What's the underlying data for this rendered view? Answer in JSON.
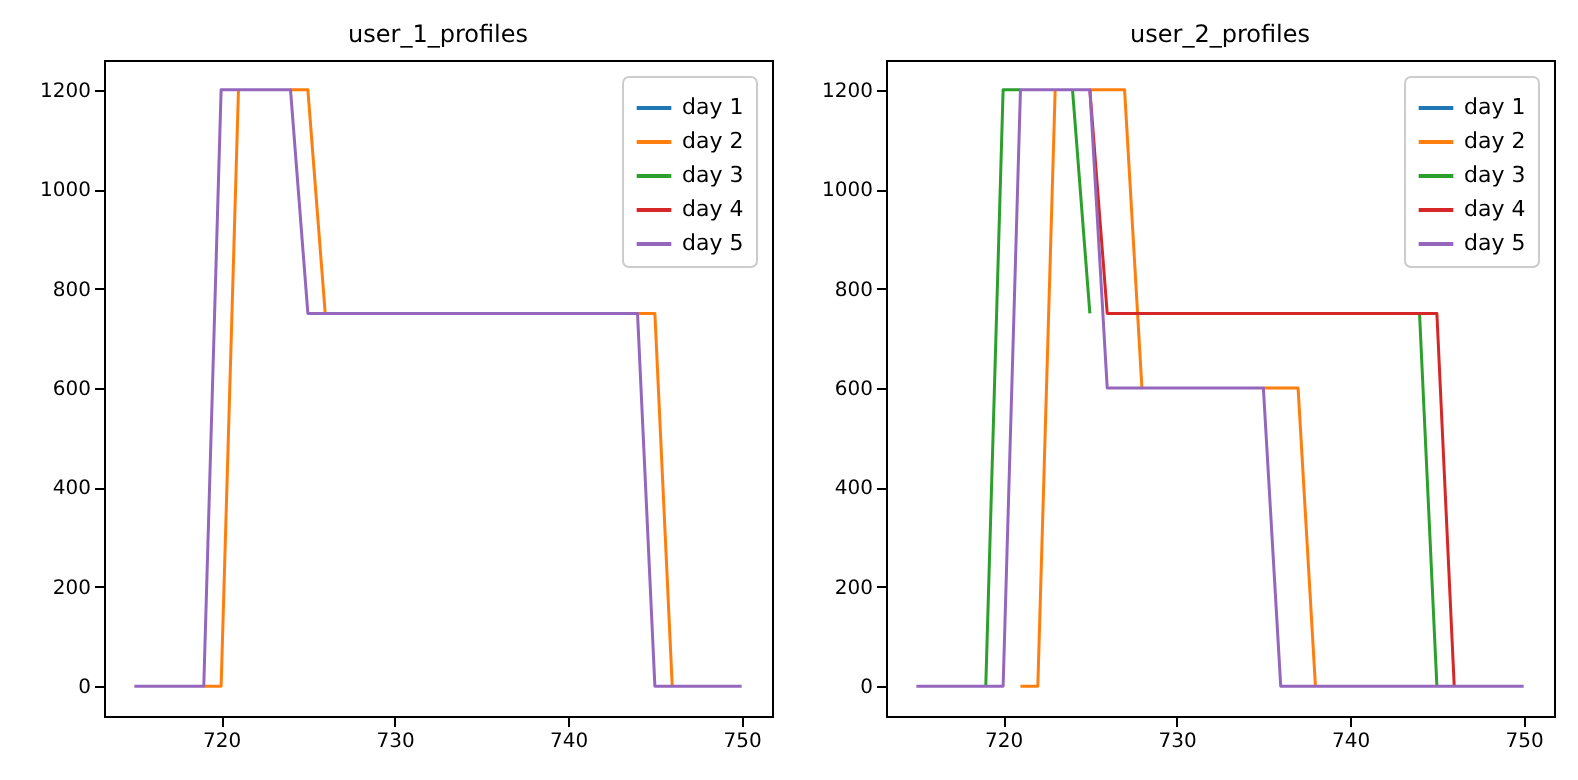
{
  "chart_data": [
    {
      "type": "line",
      "title": "user_1_profiles",
      "x": [
        715,
        716,
        717,
        718,
        719,
        720,
        721,
        722,
        723,
        724,
        725,
        726,
        727,
        728,
        729,
        730,
        731,
        732,
        733,
        734,
        735,
        736,
        737,
        738,
        739,
        740,
        741,
        742,
        743,
        744,
        745,
        746,
        747,
        748,
        749,
        750
      ],
      "xlim": [
        713.25,
        751.75
      ],
      "xticks": [
        720,
        730,
        740,
        750
      ],
      "ylim": [
        -60,
        1260
      ],
      "yticks": [
        0,
        200,
        400,
        600,
        800,
        1000,
        1200
      ],
      "legend": "top right",
      "series": [
        {
          "name": "day 1",
          "color": "#1f77b4",
          "values": [
            null,
            null,
            null,
            null,
            null,
            null,
            null,
            null,
            null,
            null,
            null,
            null,
            null,
            null,
            null,
            null,
            null,
            null,
            null,
            null,
            null,
            null,
            null,
            null,
            null,
            null,
            null,
            null,
            null,
            null,
            null,
            null,
            null,
            null,
            null,
            null
          ]
        },
        {
          "name": "day 2",
          "color": "#ff7f0e",
          "values": [
            null,
            null,
            null,
            null,
            0,
            0,
            1200,
            null,
            null,
            1200,
            1200,
            750,
            null,
            null,
            null,
            null,
            null,
            null,
            null,
            null,
            null,
            null,
            null,
            null,
            null,
            null,
            null,
            null,
            null,
            750,
            750,
            0,
            null,
            null,
            null,
            null
          ]
        },
        {
          "name": "day 3",
          "color": "#2ca02c",
          "values": [
            null,
            null,
            null,
            null,
            null,
            null,
            null,
            null,
            null,
            null,
            null,
            null,
            null,
            null,
            null,
            null,
            null,
            null,
            null,
            null,
            null,
            null,
            null,
            null,
            null,
            null,
            null,
            null,
            null,
            null,
            null,
            null,
            null,
            null,
            null,
            null
          ]
        },
        {
          "name": "day 4",
          "color": "#d62728",
          "values": [
            null,
            null,
            null,
            null,
            null,
            null,
            null,
            null,
            null,
            null,
            null,
            null,
            null,
            null,
            null,
            null,
            null,
            null,
            null,
            null,
            null,
            null,
            null,
            null,
            null,
            null,
            null,
            null,
            null,
            null,
            null,
            null,
            null,
            null,
            null,
            null
          ]
        },
        {
          "name": "day 5",
          "color": "#9467bd",
          "values": [
            0,
            0,
            0,
            0,
            0,
            1200,
            1200,
            1200,
            1200,
            1200,
            750,
            750,
            750,
            750,
            750,
            750,
            750,
            750,
            750,
            750,
            750,
            750,
            750,
            750,
            750,
            750,
            750,
            750,
            750,
            750,
            0,
            0,
            0,
            0,
            0,
            0
          ]
        }
      ]
    },
    {
      "type": "line",
      "title": "user_2_profiles",
      "x": [
        715,
        716,
        717,
        718,
        719,
        720,
        721,
        722,
        723,
        724,
        725,
        726,
        727,
        728,
        729,
        730,
        731,
        732,
        733,
        734,
        735,
        736,
        737,
        738,
        739,
        740,
        741,
        742,
        743,
        744,
        745,
        746,
        747,
        748,
        749,
        750
      ],
      "xlim": [
        713.25,
        751.75
      ],
      "xticks": [
        720,
        730,
        740,
        750
      ],
      "ylim": [
        -60,
        1260
      ],
      "yticks": [
        0,
        200,
        400,
        600,
        800,
        1000,
        1200
      ],
      "legend": "top right",
      "series": [
        {
          "name": "day 1",
          "color": "#1f77b4",
          "values": [
            null,
            null,
            null,
            null,
            null,
            null,
            null,
            null,
            null,
            null,
            null,
            null,
            null,
            null,
            null,
            null,
            null,
            null,
            null,
            null,
            null,
            null,
            null,
            null,
            null,
            null,
            null,
            null,
            null,
            null,
            null,
            null,
            null,
            null,
            null,
            null
          ]
        },
        {
          "name": "day 2",
          "color": "#ff7f0e",
          "values": [
            null,
            null,
            null,
            null,
            null,
            null,
            0,
            0,
            1200,
            null,
            1200,
            1200,
            1200,
            600,
            null,
            null,
            null,
            null,
            null,
            null,
            600,
            600,
            600,
            0,
            null,
            null,
            null,
            null,
            null,
            null,
            null,
            null,
            null,
            null,
            null,
            null
          ]
        },
        {
          "name": "day 3",
          "color": "#2ca02c",
          "values": [
            null,
            null,
            null,
            null,
            0,
            1200,
            1200,
            null,
            null,
            1200,
            750,
            null,
            null,
            null,
            null,
            null,
            null,
            null,
            null,
            null,
            null,
            null,
            null,
            null,
            null,
            null,
            null,
            null,
            null,
            750,
            0,
            null,
            null,
            null,
            null,
            null
          ]
        },
        {
          "name": "day 4",
          "color": "#d62728",
          "values": [
            null,
            null,
            null,
            null,
            null,
            null,
            null,
            null,
            null,
            null,
            1200,
            750,
            750,
            750,
            750,
            750,
            750,
            750,
            750,
            750,
            750,
            750,
            750,
            750,
            750,
            750,
            750,
            750,
            750,
            750,
            750,
            0,
            null,
            null,
            null,
            null
          ]
        },
        {
          "name": "day 5",
          "color": "#9467bd",
          "values": [
            0,
            0,
            0,
            0,
            0,
            0,
            1200,
            1200,
            1200,
            1200,
            1200,
            600,
            600,
            600,
            600,
            600,
            600,
            600,
            600,
            600,
            600,
            0,
            0,
            0,
            0,
            0,
            0,
            0,
            0,
            0,
            0,
            0,
            0,
            0,
            0,
            0
          ]
        }
      ]
    }
  ]
}
